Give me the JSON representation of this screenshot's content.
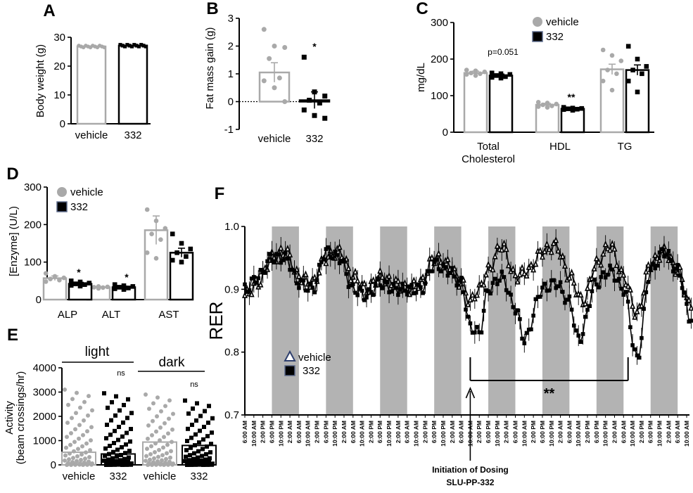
{
  "colors": {
    "vehicle": "#a9a9a9",
    "compound": "#000000",
    "dark_phase": "#b3b3b3"
  },
  "panel_labels": [
    "A",
    "B",
    "C",
    "D",
    "E",
    "F"
  ],
  "chart_data": [
    {
      "id": "A",
      "type": "bar",
      "ylabel": "Body weight (g)",
      "ylim": [
        0,
        30
      ],
      "yticks": [
        0,
        10,
        20,
        30
      ],
      "categories": [
        "vehicle",
        "332"
      ],
      "values": [
        26.8,
        27.1
      ]
    },
    {
      "id": "B",
      "type": "bar",
      "ylabel": "Fat mass gain (g)",
      "ylim": [
        -1,
        3
      ],
      "yticks": [
        -1,
        0,
        1,
        2,
        3
      ],
      "categories": [
        "vehicle",
        "332"
      ],
      "values": [
        1.05,
        0.05
      ],
      "errors": [
        0.35,
        0.3
      ],
      "points": [
        [
          2.6,
          2.0,
          1.95,
          1.55,
          0.85,
          0.75,
          0.5,
          0.0
        ],
        [
          1.6,
          0.35,
          0.2,
          0.05,
          -0.05,
          -0.3,
          -0.5,
          -0.6
        ]
      ],
      "annotations": [
        {
          "category": "332",
          "text": "*"
        }
      ]
    },
    {
      "id": "C",
      "type": "bar",
      "ylabel": "mg/dL",
      "ylim": [
        0,
        300
      ],
      "yticks": [
        0,
        100,
        200,
        300
      ],
      "categories": [
        "Total Cholesterol",
        "HDL",
        "TG"
      ],
      "legend": [
        "vehicle",
        "332"
      ],
      "legend_position": "top-left",
      "series": [
        {
          "name": "vehicle",
          "values": [
            162,
            75,
            172
          ],
          "errors": [
            5,
            4,
            14
          ],
          "points": [
            [
              170,
              168,
              165,
              162,
              160,
              158,
              155
            ],
            [
              82,
              80,
              77,
              75,
              72,
              70,
              68
            ],
            [
              225,
              210,
              195,
              170,
              160,
              140,
              115
            ]
          ]
        },
        {
          "name": "332",
          "values": [
            155,
            64,
            170
          ],
          "errors": [
            4,
            2,
            14
          ],
          "points": [
            [
              162,
              160,
              158,
              155,
              152,
              150,
              148
            ],
            [
              68,
              66,
              65,
              64,
              63,
              62,
              60
            ],
            [
              235,
              200,
              180,
              170,
              160,
              140,
              110
            ]
          ]
        }
      ],
      "annotations": [
        {
          "category": "Total Cholesterol",
          "text": "p=0.051"
        },
        {
          "category": "HDL",
          "text": "**"
        }
      ]
    },
    {
      "id": "D",
      "type": "bar",
      "ylabel": "[Enzyme] (U/L)",
      "ylim": [
        0,
        300
      ],
      "yticks": [
        0,
        100,
        200,
        300
      ],
      "categories": [
        "ALP",
        "ALT",
        "AST"
      ],
      "legend": [
        "vehicle",
        "332"
      ],
      "legend_position": "top-left",
      "series": [
        {
          "name": "vehicle",
          "values": [
            57,
            33,
            185
          ],
          "errors": [
            6,
            2,
            38
          ],
          "points": [
            [
              70,
              62,
              58,
              55,
              52,
              48
            ],
            [
              36,
              35,
              34,
              33,
              32,
              31,
              30
            ],
            [
              240,
              210,
              190,
              175,
              160,
              125,
              110
            ]
          ]
        },
        {
          "name": "332",
          "values": [
            42,
            33,
            125
          ],
          "errors": [
            4,
            3,
            12
          ],
          "points": [
            [
              50,
              47,
              44,
              42,
              40,
              38,
              36
            ],
            [
              40,
              37,
              35,
              33,
              31,
              29,
              27
            ],
            [
              175,
              150,
              135,
              125,
              115,
              105,
              100
            ]
          ]
        }
      ],
      "annotations": [
        {
          "category": "ALP",
          "text": "*"
        },
        {
          "category": "ALT",
          "text": "*"
        }
      ]
    },
    {
      "id": "E",
      "type": "bar",
      "ylabel_lines": [
        "Activity",
        "(beam crossings/hr)"
      ],
      "ylim": [
        0,
        4000
      ],
      "yticks": [
        0,
        1000,
        2000,
        3000,
        4000
      ],
      "categories": [
        "vehicle",
        "332",
        "vehicle",
        "332"
      ],
      "groups": [
        {
          "label": "light",
          "significance": "ns"
        },
        {
          "label": "dark",
          "significance": "ns"
        }
      ],
      "values": [
        520,
        450,
        940,
        800
      ],
      "point_max": [
        3100,
        2950,
        2900,
        2650
      ]
    },
    {
      "id": "F",
      "type": "line",
      "ylabel": "RER",
      "ylim": [
        0.7,
        1.0
      ],
      "yticks": [
        "0.7",
        "0.8",
        "0.9",
        "1.0"
      ],
      "x_tick_labels": [
        "6:00 AM",
        "10:00 AM",
        "2:00 PM",
        "6:00 PM",
        "10:00 PM",
        "2:00 AM",
        "6:00 AM",
        "10:00 AM",
        "2:00 PM",
        "6:00 PM",
        "10:00 PM",
        "2:00 AM",
        "6:00 AM",
        "10:00 AM",
        "2:00 PM",
        "6:00 PM",
        "10:00 PM",
        "2:00 AM",
        "6:00 AM",
        "10:00 AM",
        "2:00 PM",
        "6:00 PM",
        "10:00 PM",
        "2:00 AM",
        "6:00 AM",
        "10:00 AM",
        "2:00 PM",
        "6:00 PM",
        "10:00 PM",
        "2:00 AM",
        "6:00 AM",
        "10:00 AM",
        "2:00 PM",
        "6:00 PM",
        "10:00 PM",
        "2:00 AM",
        "6:00 AM",
        "10:00 AM",
        "2:00 PM",
        "6:00 PM",
        "10:00 PM",
        "2:00 AM",
        "6:00 AM",
        "10:00 AM",
        "2:00 PM",
        "6:00 PM",
        "10:00 PM",
        "2:00 AM",
        "6:00 AM",
        "10:00 AM"
      ],
      "x_tick_step_hours": 4,
      "dark_phases": [
        [
          12,
          24
        ],
        [
          36,
          48
        ],
        [
          60,
          72
        ],
        [
          84,
          96
        ],
        [
          108,
          120
        ],
        [
          132,
          144
        ],
        [
          156,
          168
        ],
        [
          180,
          192
        ]
      ],
      "dosing_start_hour": 100,
      "legend": [
        "vehicle",
        "332"
      ],
      "series": [
        {
          "name": "vehicle",
          "marker": "triangle-open",
          "points": [
            [
              0,
              0.89
            ],
            [
              6,
              0.91
            ],
            [
              12,
              0.95
            ],
            [
              18,
              0.96
            ],
            [
              24,
              0.92
            ],
            [
              30,
              0.91
            ],
            [
              36,
              0.95
            ],
            [
              42,
              0.96
            ],
            [
              48,
              0.92
            ],
            [
              54,
              0.9
            ],
            [
              60,
              0.92
            ],
            [
              66,
              0.91
            ],
            [
              72,
              0.9
            ],
            [
              78,
              0.91
            ],
            [
              84,
              0.95
            ],
            [
              90,
              0.94
            ],
            [
              96,
              0.91
            ],
            [
              100,
              0.88
            ],
            [
              104,
              0.9
            ],
            [
              108,
              0.93
            ],
            [
              114,
              0.97
            ],
            [
              120,
              0.92
            ],
            [
              126,
              0.93
            ],
            [
              132,
              0.96
            ],
            [
              138,
              0.97
            ],
            [
              144,
              0.92
            ],
            [
              150,
              0.88
            ],
            [
              156,
              0.94
            ],
            [
              162,
              0.97
            ],
            [
              168,
              0.92
            ],
            [
              174,
              0.86
            ],
            [
              180,
              0.94
            ],
            [
              186,
              0.96
            ],
            [
              192,
              0.93
            ],
            [
              198,
              0.87
            ]
          ]
        },
        {
          "name": "332",
          "marker": "square",
          "points": [
            [
              0,
              0.9
            ],
            [
              6,
              0.92
            ],
            [
              12,
              0.95
            ],
            [
              18,
              0.95
            ],
            [
              24,
              0.91
            ],
            [
              30,
              0.9
            ],
            [
              36,
              0.96
            ],
            [
              42,
              0.95
            ],
            [
              48,
              0.9
            ],
            [
              54,
              0.89
            ],
            [
              60,
              0.91
            ],
            [
              66,
              0.9
            ],
            [
              72,
              0.9
            ],
            [
              78,
              0.9
            ],
            [
              84,
              0.94
            ],
            [
              90,
              0.93
            ],
            [
              96,
              0.91
            ],
            [
              100,
              0.84
            ],
            [
              104,
              0.83
            ],
            [
              108,
              0.9
            ],
            [
              114,
              0.92
            ],
            [
              120,
              0.87
            ],
            [
              124,
              0.82
            ],
            [
              132,
              0.9
            ],
            [
              138,
              0.91
            ],
            [
              144,
              0.88
            ],
            [
              148,
              0.82
            ],
            [
              156,
              0.91
            ],
            [
              162,
              0.93
            ],
            [
              168,
              0.9
            ],
            [
              174,
              0.79
            ],
            [
              180,
              0.93
            ],
            [
              186,
              0.96
            ],
            [
              192,
              0.93
            ],
            [
              198,
              0.85
            ]
          ]
        }
      ],
      "annotations": [
        {
          "text": "**",
          "from_hour": 100,
          "to_hour": 170
        }
      ],
      "arrow_label_lines": [
        "Initiation of Dosing",
        "SLU-PP-332"
      ]
    }
  ]
}
